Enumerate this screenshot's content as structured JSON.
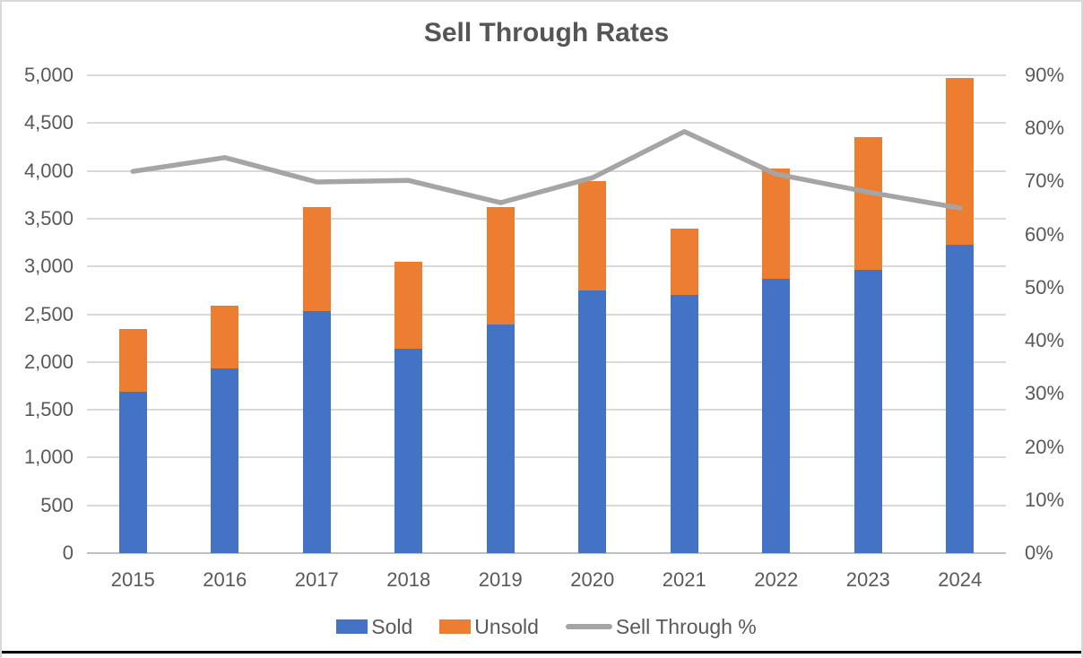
{
  "chart_data": {
    "type": "combo",
    "title": "Sell Through Rates",
    "categories": [
      "2015",
      "2016",
      "2017",
      "2018",
      "2019",
      "2020",
      "2021",
      "2022",
      "2023",
      "2024"
    ],
    "series": [
      {
        "name": "Sold",
        "type": "bar",
        "stacked": true,
        "color": "#4472C4",
        "values": [
          1690,
          1930,
          2530,
          2140,
          2390,
          2750,
          2700,
          2870,
          2960,
          3230
        ]
      },
      {
        "name": "Unsold",
        "type": "bar",
        "stacked": true,
        "color": "#ED7D31",
        "values": [
          660,
          660,
          1090,
          910,
          1230,
          1140,
          700,
          1150,
          1390,
          1740
        ]
      },
      {
        "name": "Sell Through %",
        "type": "line",
        "axis": "right",
        "color": "#A5A5A5",
        "values": [
          71.9,
          74.5,
          69.9,
          70.2,
          66.0,
          70.7,
          79.4,
          71.4,
          68.0,
          65.0
        ]
      }
    ],
    "stacked_totals": [
      2350,
      2590,
      3620,
      3050,
      3620,
      3890,
      3400,
      4020,
      4350,
      4970
    ],
    "left_axis": {
      "min": 0,
      "max": 5000,
      "step": 500,
      "tick_labels": [
        "5,000",
        "4,500",
        "4,000",
        "3,500",
        "3,000",
        "2,500",
        "2,000",
        "1,500",
        "1,000",
        "500",
        "0"
      ]
    },
    "right_axis": {
      "min": 0,
      "max": 90,
      "step": 10,
      "unit": "%",
      "tick_labels": [
        "90%",
        "80%",
        "70%",
        "60%",
        "50%",
        "40%",
        "30%",
        "20%",
        "10%",
        "0%"
      ]
    },
    "legend": {
      "position": "bottom",
      "entries": [
        "Sold",
        "Unsold",
        "Sell Through %"
      ]
    },
    "grid": true,
    "colors": {
      "sold": "#4472C4",
      "unsold": "#ED7D31",
      "line": "#A5A5A5",
      "gridline": "#D9D9D9",
      "axis_line": "#BFBFBF",
      "text": "#595959"
    }
  }
}
